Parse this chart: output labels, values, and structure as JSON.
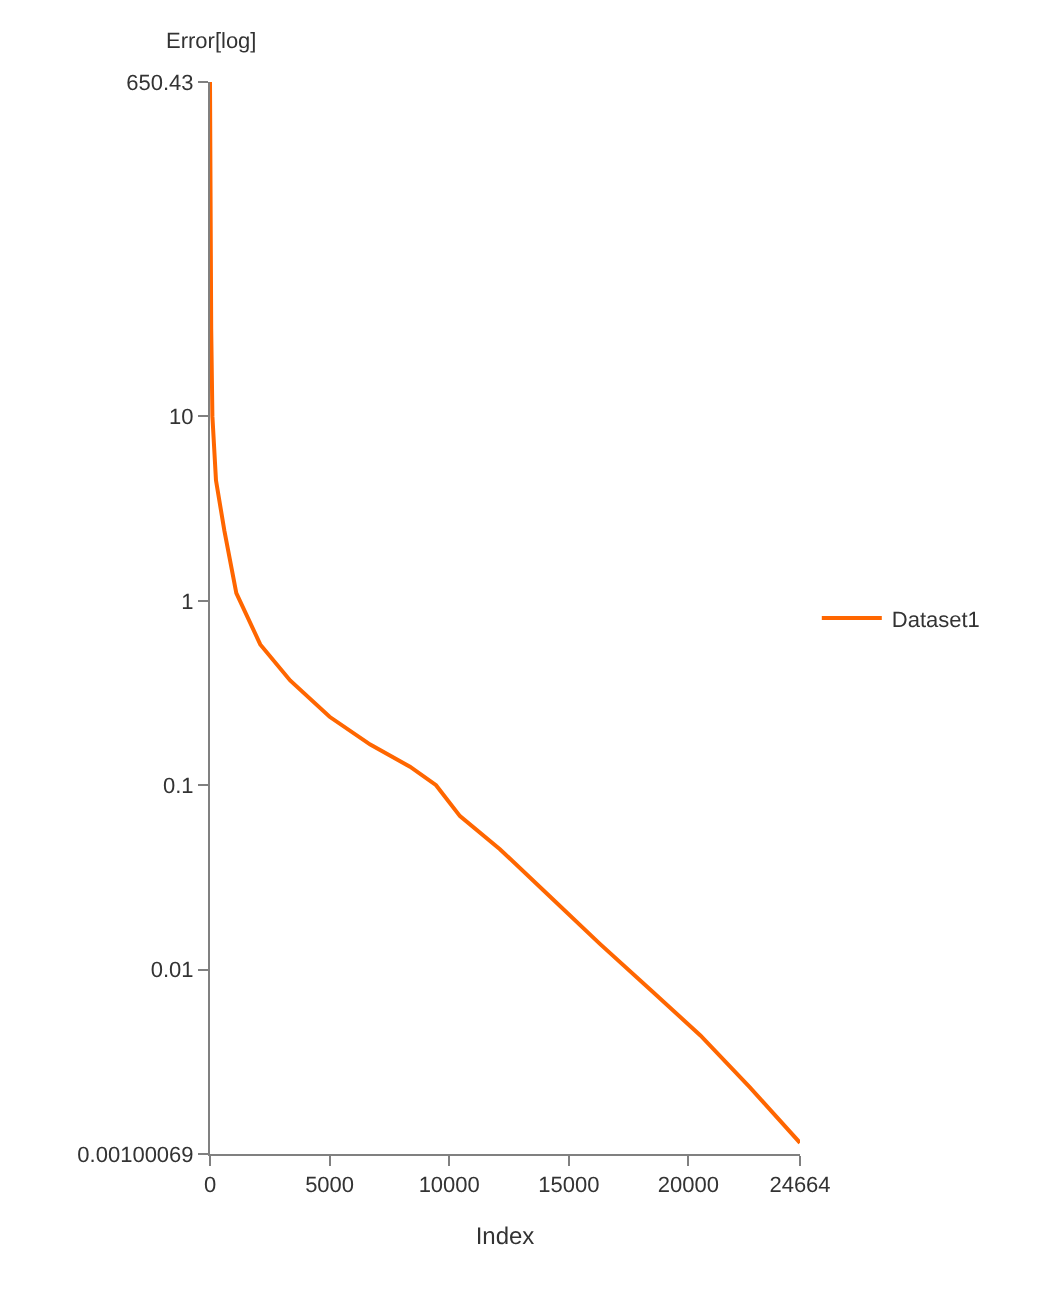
{
  "chart_data": {
    "type": "line",
    "xlabel": "Index",
    "ylabel": "Error[log]",
    "log": "y",
    "legend": "right",
    "marker": "none",
    "line_style": "solid",
    "xlim": [
      0,
      24664
    ],
    "xticks": [
      0,
      5000,
      10000,
      15000,
      20000,
      24664
    ],
    "ylim": [
      0.00100069,
      650.43
    ],
    "yticks": [
      0.00100069,
      0.01,
      0.1,
      1,
      10,
      650.43
    ],
    "series": [
      {
        "name": "Dataset1",
        "color": "#ff6600",
        "x": [
          0,
          50,
          100,
          250,
          600,
          1100,
          2100,
          3350,
          5000,
          6700,
          8360,
          9450,
          10450,
          12120,
          14200,
          16300,
          18400,
          20500,
          22570,
          24664
        ],
        "values": [
          650,
          30,
          10,
          4.5,
          2.4,
          1.1,
          0.58,
          0.37,
          0.235,
          0.166,
          0.126,
          0.1,
          0.068,
          0.045,
          0.025,
          0.0138,
          0.0078,
          0.0044,
          0.0023,
          0.00115
        ]
      }
    ]
  }
}
